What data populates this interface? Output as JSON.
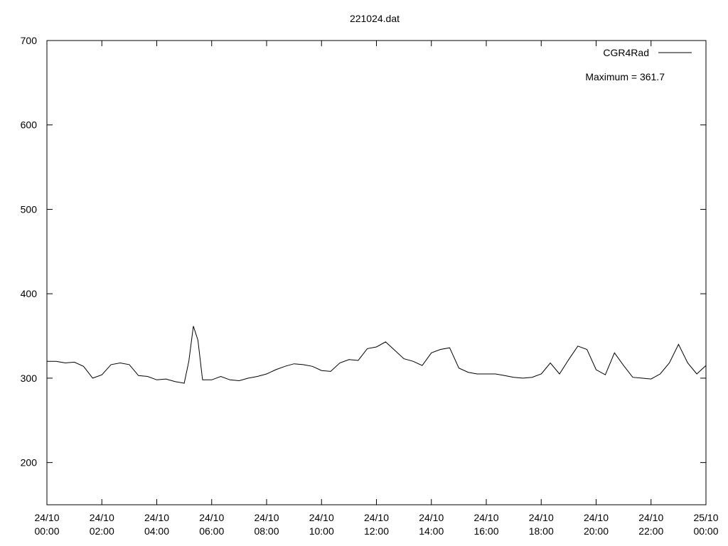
{
  "chart_data": {
    "type": "line",
    "title": "221024.dat",
    "annotation": "Maximum = 361.7",
    "x": [
      "24/10 00:00",
      "24/10 00:20",
      "24/10 00:40",
      "24/10 01:00",
      "24/10 01:20",
      "24/10 01:40",
      "24/10 02:00",
      "24/10 02:20",
      "24/10 02:40",
      "24/10 03:00",
      "24/10 03:20",
      "24/10 03:40",
      "24/10 04:00",
      "24/10 04:20",
      "24/10 04:40",
      "24/10 05:00",
      "24/10 05:10",
      "24/10 05:20",
      "24/10 05:30",
      "24/10 05:40",
      "24/10 06:00",
      "24/10 06:20",
      "24/10 06:40",
      "24/10 07:00",
      "24/10 07:20",
      "24/10 07:40",
      "24/10 08:00",
      "24/10 08:20",
      "24/10 08:40",
      "24/10 09:00",
      "24/10 09:20",
      "24/10 09:40",
      "24/10 10:00",
      "24/10 10:20",
      "24/10 10:40",
      "24/10 11:00",
      "24/10 11:20",
      "24/10 11:40",
      "24/10 12:00",
      "24/10 12:20",
      "24/10 12:40",
      "24/10 13:00",
      "24/10 13:20",
      "24/10 13:40",
      "24/10 14:00",
      "24/10 14:20",
      "24/10 14:40",
      "24/10 15:00",
      "24/10 15:20",
      "24/10 15:40",
      "24/10 16:00",
      "24/10 16:20",
      "24/10 16:40",
      "24/10 17:00",
      "24/10 17:20",
      "24/10 17:40",
      "24/10 18:00",
      "24/10 18:20",
      "24/10 18:40",
      "24/10 19:00",
      "24/10 19:20",
      "24/10 19:40",
      "24/10 20:00",
      "24/10 20:20",
      "24/10 20:40",
      "24/10 21:00",
      "24/10 21:20",
      "24/10 21:40",
      "24/10 22:00",
      "24/10 22:20",
      "24/10 22:40",
      "24/10 23:00",
      "24/10 23:20",
      "24/10 23:40",
      "25/10 00:00"
    ],
    "series": [
      {
        "name": "CGR4Rad",
        "color": "#000000",
        "values": [
          320,
          320,
          318,
          319,
          314,
          300,
          304,
          316,
          318,
          316,
          303,
          302,
          298,
          299,
          296,
          294,
          320,
          361.7,
          345,
          298,
          298,
          302,
          298,
          297,
          300,
          302,
          305,
          310,
          314,
          317,
          316,
          314,
          309,
          308,
          318,
          322,
          321,
          335,
          337,
          343,
          333,
          323,
          320,
          315,
          330,
          334,
          336,
          312,
          307,
          305,
          305,
          305,
          303,
          301,
          300,
          301,
          305,
          318,
          305,
          322,
          338,
          334,
          310,
          304,
          330,
          315,
          301,
          300,
          299,
          305,
          318,
          340,
          318,
          305,
          315
        ]
      }
    ],
    "xlim": [
      "24/10 00:00",
      "25/10 00:00"
    ],
    "xticks": [
      {
        "value": "24/10 00:00",
        "label": [
          "24/10",
          "00:00"
        ]
      },
      {
        "value": "24/10 02:00",
        "label": [
          "24/10",
          "02:00"
        ]
      },
      {
        "value": "24/10 04:00",
        "label": [
          "24/10",
          "04:00"
        ]
      },
      {
        "value": "24/10 06:00",
        "label": [
          "24/10",
          "06:00"
        ]
      },
      {
        "value": "24/10 08:00",
        "label": [
          "24/10",
          "08:00"
        ]
      },
      {
        "value": "24/10 10:00",
        "label": [
          "24/10",
          "10:00"
        ]
      },
      {
        "value": "24/10 12:00",
        "label": [
          "24/10",
          "12:00"
        ]
      },
      {
        "value": "24/10 14:00",
        "label": [
          "24/10",
          "14:00"
        ]
      },
      {
        "value": "24/10 16:00",
        "label": [
          "24/10",
          "16:00"
        ]
      },
      {
        "value": "24/10 18:00",
        "label": [
          "24/10",
          "18:00"
        ]
      },
      {
        "value": "24/10 20:00",
        "label": [
          "24/10",
          "20:00"
        ]
      },
      {
        "value": "24/10 22:00",
        "label": [
          "24/10",
          "22:00"
        ]
      },
      {
        "value": "25/10 00:00",
        "label": [
          "25/10",
          "00:00"
        ]
      }
    ],
    "ylim": [
      150,
      700
    ],
    "yticks": [
      200,
      300,
      400,
      500,
      600,
      700
    ],
    "grid": false,
    "legend": "top-right"
  }
}
